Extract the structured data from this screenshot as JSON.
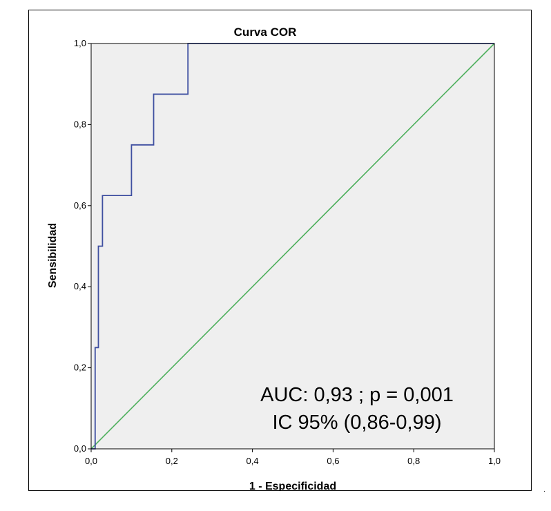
{
  "chart_data": {
    "type": "line",
    "title": "Curva COR",
    "xlabel": "1 - Especificidad",
    "ylabel": "Sensibilidad",
    "xlim": [
      0,
      1
    ],
    "ylim": [
      0,
      1
    ],
    "x_ticks": [
      "0,0",
      "0,2",
      "0,4",
      "0,6",
      "0,8",
      "1,0"
    ],
    "y_ticks": [
      "0,0",
      "0,2",
      "0,4",
      "0,6",
      "0,8",
      "1,0"
    ],
    "series": [
      {
        "name": "ROC",
        "color": "#3e4fa0",
        "x": [
          0.0,
          0.01,
          0.01,
          0.018,
          0.018,
          0.028,
          0.028,
          0.1,
          0.1,
          0.155,
          0.155,
          0.24,
          0.24,
          1.0
        ],
        "y": [
          0.0,
          0.0,
          0.25,
          0.25,
          0.5,
          0.5,
          0.625,
          0.625,
          0.75,
          0.75,
          0.875,
          0.875,
          1.0,
          1.0
        ]
      },
      {
        "name": "Reference line",
        "color": "#4daf5c",
        "x": [
          0,
          1
        ],
        "y": [
          0,
          1
        ]
      }
    ],
    "annotations": [
      "AUC: 0,93 ; p = 0,001",
      "IC 95% (0,86-0,99)"
    ],
    "plot_background": "#efefef"
  },
  "corner_mark": "."
}
